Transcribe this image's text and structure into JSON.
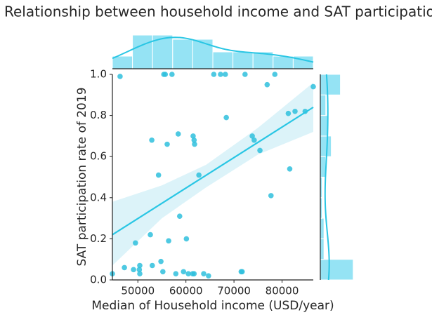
{
  "chart_data": {
    "type": "scatter",
    "title": "Relationship between household income and SAT participation rate",
    "x_label": "Median of Household income (USD/year)",
    "y_label": "SAT participation rate of 2019",
    "color": "#2fbfdd",
    "x": [
      44700,
      46300,
      47200,
      49100,
      49500,
      50300,
      50400,
      50400,
      52600,
      52900,
      53000,
      54300,
      54800,
      55200,
      55400,
      55700,
      56100,
      56400,
      57100,
      57900,
      58400,
      58700,
      59500,
      60100,
      60500,
      61400,
      61500,
      61700,
      61700,
      61800,
      62700,
      63700,
      64700,
      65800,
      67200,
      68200,
      68400,
      71500,
      71700,
      72300,
      73800,
      74200,
      75400,
      76900,
      77700,
      78500,
      81300,
      81600,
      82700,
      84800,
      86500
    ],
    "y": [
      0.03,
      0.99,
      0.06,
      0.05,
      0.18,
      0.05,
      0.03,
      0.07,
      0.22,
      0.68,
      0.07,
      0.51,
      0.09,
      0.04,
      1.0,
      1.0,
      0.66,
      0.19,
      1.0,
      0.03,
      0.71,
      0.31,
      0.04,
      0.2,
      0.03,
      0.03,
      0.7,
      0.03,
      0.68,
      0.66,
      0.51,
      0.03,
      0.02,
      1.0,
      1.0,
      1.0,
      0.79,
      0.04,
      0.04,
      1.0,
      0.7,
      0.68,
      0.63,
      0.95,
      0.41,
      1.0,
      0.81,
      0.54,
      0.82,
      0.82,
      0.94
    ],
    "xlim": [
      44700,
      86500
    ],
    "ylim": [
      0,
      1
    ],
    "xticks": [
      50000,
      60000,
      70000,
      80000
    ],
    "yticks": [
      {
        "value": 0,
        "label": "0.0"
      },
      0.2,
      0.4,
      0.6,
      0.8,
      {
        "value": 1,
        "label": "1.0"
      }
    ],
    "regression": {
      "x": [
        44700,
        86500
      ],
      "y": [
        0.22,
        0.84
      ],
      "color": "#29c6e4"
    },
    "ci": {
      "x": [
        44700,
        55000,
        64200,
        75000,
        86500
      ],
      "lower": [
        0.07,
        0.3,
        0.45,
        0.61,
        0.72
      ],
      "upper": [
        0.38,
        0.46,
        0.56,
        0.74,
        0.96
      ],
      "color": "#dcf3f9"
    },
    "top_hist": {
      "bins": [
        44700,
        48880,
        53060,
        57240,
        61420,
        65600,
        69780,
        73960,
        78140,
        82320,
        86500
      ],
      "counts": [
        3,
        8,
        8,
        7,
        7,
        4,
        4,
        4,
        3,
        3
      ],
      "color": "#95e3f4"
    },
    "right_hist": {
      "bins": [
        0,
        0.1,
        0.2,
        0.3,
        0.4,
        0.5,
        0.6,
        0.7,
        0.8,
        0.9,
        1
      ],
      "counts": [
        18,
        2,
        2,
        1,
        1,
        3,
        6,
        4,
        3,
        11
      ],
      "color": "#95e3f4"
    }
  }
}
